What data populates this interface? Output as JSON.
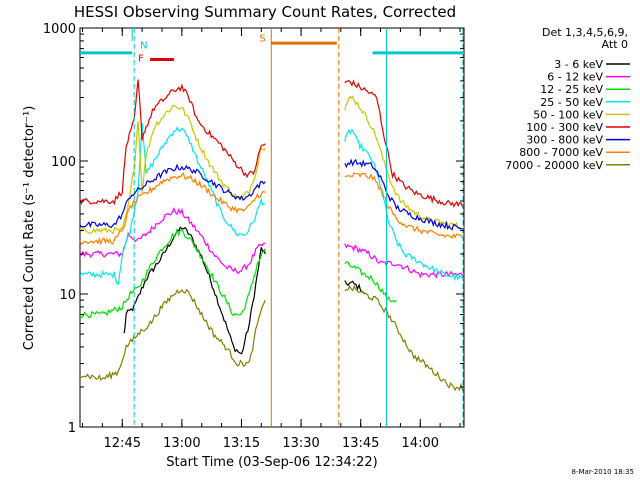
{
  "chart_data": {
    "type": "line",
    "title": "HESSI Observing Summary Count Rates, Corrected",
    "xlabel": "Start Time (03-Sep-06 12:34:22)",
    "ylabel": "Corrected Count Rate (s⁻¹ detector⁻¹)",
    "y_scale": "log",
    "ylim": [
      1,
      1000
    ],
    "xlim": [
      "12:34:22",
      "14:11:00"
    ],
    "x_ticks": [
      "12:45",
      "13:00",
      "13:15",
      "13:30",
      "13:45",
      "14:00"
    ],
    "y_ticks": [
      "1",
      "10",
      "100",
      "1000"
    ],
    "legend_header": [
      "Det 1,3,4,5,6,9,",
      "Att 0"
    ],
    "timestamp": "8-Mar-2010 18:35",
    "flags": [
      {
        "label": "N",
        "color": "#00c8c8"
      },
      {
        "label": "F",
        "color": "#e00000"
      },
      {
        "label": "S",
        "color": "#e07000"
      }
    ],
    "series": [
      {
        "name": "3 - 6 keV",
        "color": "#000000",
        "points": [
          [
            "12:45:30",
            5
          ],
          [
            "12:46:00",
            7
          ],
          [
            "12:48:00",
            8
          ],
          [
            "12:51:00",
            13
          ],
          [
            "12:55:00",
            19
          ],
          [
            "12:58:00",
            27
          ],
          [
            "13:00:00",
            32
          ],
          [
            "13:02:00",
            28
          ],
          [
            "13:05:00",
            19
          ],
          [
            "13:08:00",
            11
          ],
          [
            "13:11:00",
            6
          ],
          [
            "13:13:00",
            4
          ],
          [
            "13:15:00",
            3.5
          ],
          [
            "13:17:00",
            6
          ],
          [
            "13:19:00",
            14
          ],
          [
            "13:20:00",
            22
          ],
          [
            "13:21:00",
            20
          ]
        ],
        "points2": [
          [
            "13:41:00",
            12
          ],
          [
            "13:43:00",
            12
          ],
          [
            "13:45:00",
            11
          ],
          [
            "13:46:00",
            10
          ]
        ]
      },
      {
        "name": "6 - 12 keV",
        "color": "#ff00ff",
        "points": [
          [
            "12:34:22",
            20
          ],
          [
            "12:45:00",
            20
          ],
          [
            "12:46:30",
            28
          ],
          [
            "12:49:00",
            25
          ],
          [
            "12:52:00",
            30
          ],
          [
            "12:55:00",
            37
          ],
          [
            "12:58:00",
            42
          ],
          [
            "13:00:00",
            41
          ],
          [
            "13:02:00",
            35
          ],
          [
            "13:05:00",
            27
          ],
          [
            "13:08:00",
            20
          ],
          [
            "13:11:00",
            16
          ],
          [
            "13:13:00",
            15
          ],
          [
            "13:15:00",
            15
          ],
          [
            "13:17:00",
            17
          ],
          [
            "13:19:00",
            22
          ],
          [
            "13:21:00",
            24
          ]
        ],
        "points2": [
          [
            "13:41:00",
            23
          ],
          [
            "13:44:00",
            22
          ],
          [
            "13:47:00",
            20
          ],
          [
            "13:48:00",
            19
          ],
          [
            "13:50:00",
            17
          ],
          [
            "13:54:00",
            17
          ],
          [
            "13:56:00",
            16
          ],
          [
            "13:58:00",
            15
          ],
          [
            "14:00:00",
            14
          ],
          [
            "14:04:00",
            14
          ],
          [
            "14:07:00",
            14
          ],
          [
            "14:11:00",
            14
          ]
        ]
      },
      {
        "name": "12 - 25 keV",
        "color": "#00e000",
        "points": [
          [
            "12:34:22",
            7
          ],
          [
            "12:40:00",
            7
          ],
          [
            "12:45:00",
            8
          ],
          [
            "12:47:00",
            10
          ],
          [
            "12:49:00",
            11
          ],
          [
            "12:52:00",
            16
          ],
          [
            "12:55:00",
            22
          ],
          [
            "12:58:00",
            28
          ],
          [
            "13:00:00",
            30
          ],
          [
            "13:02:00",
            26
          ],
          [
            "13:05:00",
            19
          ],
          [
            "13:08:00",
            13
          ],
          [
            "13:11:00",
            9
          ],
          [
            "13:13:00",
            7
          ],
          [
            "13:15:00",
            7
          ],
          [
            "13:17:00",
            10
          ],
          [
            "13:19:00",
            17
          ],
          [
            "13:21:00",
            22
          ]
        ],
        "points2": [
          [
            "13:41:00",
            17
          ],
          [
            "13:43:00",
            16
          ],
          [
            "13:46:00",
            14
          ],
          [
            "13:48:00",
            13
          ],
          [
            "13:50:00",
            11
          ],
          [
            "13:52:00",
            9
          ],
          [
            "13:54:00",
            9
          ]
        ]
      },
      {
        "name": "25 - 50 keV",
        "color": "#00e8e8",
        "points": [
          [
            "12:34:22",
            14
          ],
          [
            "12:43:00",
            14
          ],
          [
            "12:44:00",
            12
          ],
          [
            "12:45:00",
            20
          ],
          [
            "12:47:00",
            30
          ],
          [
            "12:49:00",
            60
          ],
          [
            "12:50:00",
            200
          ],
          [
            "12:51:00",
            80
          ],
          [
            "12:53:00",
            100
          ],
          [
            "12:56:00",
            140
          ],
          [
            "12:58:00",
            170
          ],
          [
            "13:00:00",
            175
          ],
          [
            "13:02:00",
            140
          ],
          [
            "13:04:00",
            100
          ],
          [
            "13:06:00",
            75
          ],
          [
            "13:08:00",
            55
          ],
          [
            "13:10:00",
            40
          ],
          [
            "13:12:00",
            33
          ],
          [
            "13:14:00",
            28
          ],
          [
            "13:16:00",
            28
          ],
          [
            "13:18:00",
            35
          ],
          [
            "13:20:00",
            50
          ],
          [
            "13:21:00",
            48
          ]
        ],
        "points2": [
          [
            "13:41:00",
            140
          ],
          [
            "13:42:00",
            165
          ],
          [
            "13:43:00",
            170
          ],
          [
            "13:44:00",
            140
          ],
          [
            "13:46:00",
            120
          ],
          [
            "13:48:00",
            100
          ],
          [
            "13:50:00",
            65
          ],
          [
            "13:52:00",
            35
          ],
          [
            "13:54:00",
            25
          ],
          [
            "13:56:00",
            20
          ],
          [
            "13:59:00",
            18
          ],
          [
            "14:02:00",
            16
          ],
          [
            "14:06:00",
            14
          ],
          [
            "14:11:00",
            13
          ]
        ]
      },
      {
        "name": "50 - 100 keV",
        "color": "#c8c800",
        "points": [
          [
            "12:34:22",
            30
          ],
          [
            "12:45:00",
            30
          ],
          [
            "12:46:30",
            45
          ],
          [
            "12:48:00",
            90
          ],
          [
            "12:49:00",
            200
          ],
          [
            "12:50:00",
            60
          ],
          [
            "12:51:00",
            110
          ],
          [
            "12:53:00",
            180
          ],
          [
            "12:56:00",
            230
          ],
          [
            "12:58:00",
            260
          ],
          [
            "13:00:00",
            250
          ],
          [
            "13:02:00",
            200
          ],
          [
            "13:04:00",
            140
          ],
          [
            "13:07:00",
            95
          ],
          [
            "13:10:00",
            70
          ],
          [
            "13:13:00",
            55
          ],
          [
            "13:15:00",
            52
          ],
          [
            "13:17:00",
            60
          ],
          [
            "13:19:00",
            90
          ],
          [
            "13:20:00",
            130
          ],
          [
            "13:21:00",
            125
          ]
        ],
        "points2": [
          [
            "13:41:00",
            250
          ],
          [
            "13:42:00",
            290
          ],
          [
            "13:43:00",
            300
          ],
          [
            "13:45:00",
            250
          ],
          [
            "13:47:00",
            200
          ],
          [
            "13:49:00",
            150
          ],
          [
            "13:51:00",
            95
          ],
          [
            "13:53:00",
            65
          ],
          [
            "13:55:00",
            50
          ],
          [
            "13:58:00",
            42
          ],
          [
            "14:02:00",
            36
          ],
          [
            "14:06:00",
            34
          ],
          [
            "14:11:00",
            32
          ]
        ]
      },
      {
        "name": "100 - 300 keV",
        "color": "#e00000",
        "points": [
          [
            "12:34:22",
            50
          ],
          [
            "12:43:00",
            50
          ],
          [
            "12:45:00",
            60
          ],
          [
            "12:46:00",
            130
          ],
          [
            "12:48:00",
            200
          ],
          [
            "12:49:00",
            400
          ],
          [
            "12:50:00",
            150
          ],
          [
            "12:51:00",
            180
          ],
          [
            "12:53:00",
            250
          ],
          [
            "12:56:00",
            300
          ],
          [
            "12:58:00",
            340
          ],
          [
            "13:00:00",
            360
          ],
          [
            "13:02:00",
            290
          ],
          [
            "13:04:00",
            200
          ],
          [
            "13:07:00",
            160
          ],
          [
            "13:10:00",
            130
          ],
          [
            "13:13:00",
            100
          ],
          [
            "13:16:00",
            80
          ],
          [
            "13:18:00",
            80
          ],
          [
            "13:20:00",
            130
          ],
          [
            "13:21:00",
            135
          ]
        ],
        "points2": [
          [
            "13:41:00",
            380
          ],
          [
            "13:42:00",
            400
          ],
          [
            "13:44:00",
            370
          ],
          [
            "13:47:00",
            330
          ],
          [
            "13:49:00",
            300
          ],
          [
            "13:51:00",
            150
          ],
          [
            "13:53:00",
            80
          ],
          [
            "13:56:00",
            65
          ],
          [
            "13:59:00",
            57
          ],
          [
            "14:03:00",
            52
          ],
          [
            "14:07:00",
            48
          ],
          [
            "14:11:00",
            47
          ]
        ]
      },
      {
        "name": "300 - 800 keV",
        "color": "#0000e0",
        "points": [
          [
            "12:34:22",
            33
          ],
          [
            "12:43:00",
            33
          ],
          [
            "12:45:00",
            40
          ],
          [
            "12:47:00",
            55
          ],
          [
            "12:49:00",
            60
          ],
          [
            "12:52:00",
            70
          ],
          [
            "12:55:00",
            80
          ],
          [
            "12:58:00",
            88
          ],
          [
            "13:00:00",
            90
          ],
          [
            "13:03:00",
            85
          ],
          [
            "13:06:00",
            75
          ],
          [
            "13:09:00",
            65
          ],
          [
            "13:12:00",
            57
          ],
          [
            "13:15:00",
            52
          ],
          [
            "13:17:00",
            55
          ],
          [
            "13:19:00",
            65
          ],
          [
            "13:21:00",
            70
          ]
        ],
        "points2": [
          [
            "13:41:00",
            95
          ],
          [
            "13:43:00",
            98
          ],
          [
            "13:46:00",
            95
          ],
          [
            "13:48:00",
            92
          ],
          [
            "13:50:00",
            75
          ],
          [
            "13:52:00",
            55
          ],
          [
            "13:54:00",
            45
          ],
          [
            "13:57:00",
            40
          ],
          [
            "14:00:00",
            37
          ],
          [
            "14:04:00",
            34
          ],
          [
            "14:08:00",
            32
          ],
          [
            "14:11:00",
            31
          ]
        ]
      },
      {
        "name": "800 - 7000 keV",
        "color": "#ff8000",
        "points": [
          [
            "12:34:22",
            25
          ],
          [
            "12:43:00",
            25
          ],
          [
            "12:45:00",
            30
          ],
          [
            "12:47:00",
            45
          ],
          [
            "12:49:00",
            52
          ],
          [
            "12:52:00",
            60
          ],
          [
            "12:55:00",
            70
          ],
          [
            "12:58:00",
            76
          ],
          [
            "13:00:00",
            78
          ],
          [
            "13:03:00",
            72
          ],
          [
            "13:06:00",
            62
          ],
          [
            "13:09:00",
            52
          ],
          [
            "13:12:00",
            45
          ],
          [
            "13:15:00",
            42
          ],
          [
            "13:17:00",
            45
          ],
          [
            "13:19:00",
            55
          ],
          [
            "13:21:00",
            58
          ]
        ],
        "points2": [
          [
            "13:41:00",
            75
          ],
          [
            "13:43:00",
            78
          ],
          [
            "13:46:00",
            78
          ],
          [
            "13:48:00",
            75
          ],
          [
            "13:50:00",
            62
          ],
          [
            "13:52:00",
            45
          ],
          [
            "13:54:00",
            37
          ],
          [
            "13:57:00",
            32
          ],
          [
            "14:00:00",
            30
          ],
          [
            "14:04:00",
            28
          ],
          [
            "14:08:00",
            27
          ],
          [
            "14:11:00",
            27
          ]
        ]
      },
      {
        "name": "7000 - 20000 keV",
        "color": "#808000",
        "points": [
          [
            "12:34:22",
            2.5
          ],
          [
            "12:40:00",
            2.3
          ],
          [
            "12:44:00",
            2.6
          ],
          [
            "12:46:00",
            4
          ],
          [
            "12:49:00",
            5
          ],
          [
            "12:52:00",
            6
          ],
          [
            "12:55:00",
            8
          ],
          [
            "12:58:00",
            10
          ],
          [
            "13:00:00",
            11
          ],
          [
            "13:02:00",
            10
          ],
          [
            "13:05:00",
            7
          ],
          [
            "13:08:00",
            5
          ],
          [
            "13:11:00",
            4
          ],
          [
            "13:14:00",
            3
          ],
          [
            "13:17:00",
            3
          ],
          [
            "13:19:00",
            6
          ],
          [
            "13:21:00",
            9
          ]
        ],
        "points2": [
          [
            "13:41:00",
            11
          ],
          [
            "13:43:00",
            11
          ],
          [
            "13:46:00",
            10
          ],
          [
            "13:49:00",
            9
          ],
          [
            "13:52:00",
            7
          ],
          [
            "13:55:00",
            5
          ],
          [
            "13:58:00",
            3.5
          ],
          [
            "14:01:00",
            3
          ],
          [
            "14:04:00",
            2.5
          ],
          [
            "14:08:00",
            2
          ],
          [
            "14:11:00",
            2
          ]
        ]
      }
    ]
  }
}
